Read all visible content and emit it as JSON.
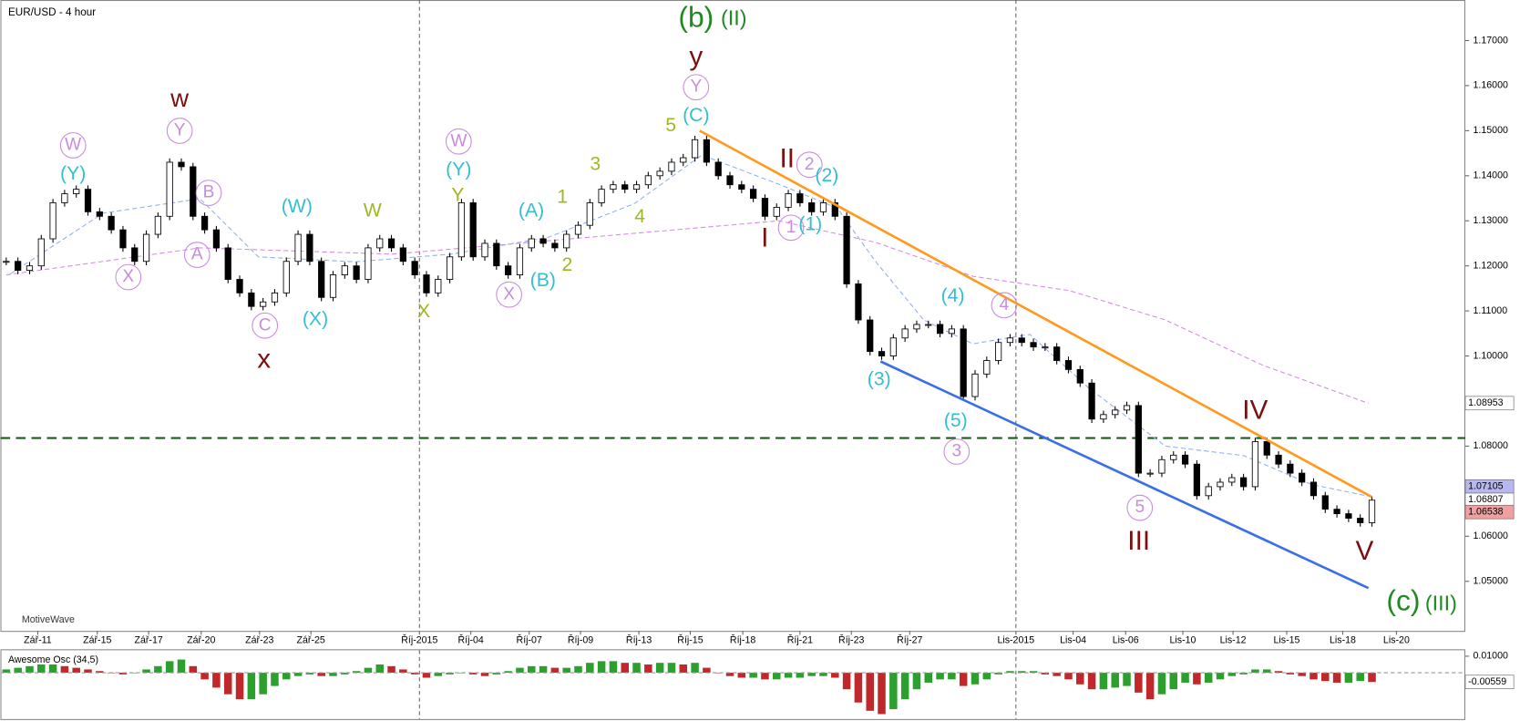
{
  "chart_data": [
    {
      "type": "candlestick",
      "title": "EUR/USD - 4 hour",
      "watermark": "MotiveWave",
      "closes": [
        1.121,
        1.119,
        1.12,
        1.126,
        1.134,
        1.136,
        1.137,
        1.132,
        1.131,
        1.128,
        1.124,
        1.121,
        1.127,
        1.131,
        1.143,
        1.142,
        1.131,
        1.128,
        1.124,
        1.117,
        1.114,
        1.111,
        1.112,
        1.114,
        1.121,
        1.127,
        1.121,
        1.113,
        1.118,
        1.12,
        1.117,
        1.124,
        1.126,
        1.124,
        1.121,
        1.118,
        1.114,
        1.117,
        1.122,
        1.134,
        1.122,
        1.125,
        1.12,
        1.118,
        1.124,
        1.126,
        1.125,
        1.124,
        1.127,
        1.129,
        1.134,
        1.137,
        1.138,
        1.137,
        1.138,
        1.14,
        1.141,
        1.143,
        1.144,
        1.148,
        1.143,
        1.14,
        1.138,
        1.137,
        1.135,
        1.131,
        1.133,
        1.136,
        1.134,
        1.132,
        1.134,
        1.131,
        1.116,
        1.108,
        1.101,
        1.1,
        1.104,
        1.106,
        1.107,
        1.107,
        1.105,
        1.106,
        1.091,
        1.096,
        1.099,
        1.103,
        1.104,
        1.103,
        1.102,
        1.102,
        1.099,
        1.097,
        1.094,
        1.086,
        1.087,
        1.088,
        1.089,
        1.074,
        1.074,
        1.077,
        1.078,
        1.076,
        1.069,
        1.071,
        1.072,
        1.073,
        1.071,
        1.081,
        1.078,
        1.076,
        1.074,
        1.072,
        1.069,
        1.066,
        1.065,
        1.064,
        1.063,
        1.068
      ],
      "up_color": "#ffffff",
      "down_color": "#000000",
      "xlim": [
        0,
        125
      ],
      "xticks": [
        {
          "value": 2.7,
          "label": "Zář-11"
        },
        {
          "value": 7.8,
          "label": "Zář-15"
        },
        {
          "value": 12.2,
          "label": "Zář-17"
        },
        {
          "value": 16.7,
          "label": "Zář-20"
        },
        {
          "value": 21.7,
          "label": "Zář-23"
        },
        {
          "value": 26.1,
          "label": "Zář-25"
        },
        {
          "value": 35.4,
          "label": "Říj-2015"
        },
        {
          "value": 39.8,
          "label": "Říj-04"
        },
        {
          "value": 44.8,
          "label": "Říj-07"
        },
        {
          "value": 49.2,
          "label": "Říj-09"
        },
        {
          "value": 54.2,
          "label": "Říj-13"
        },
        {
          "value": 58.6,
          "label": "Říj-15"
        },
        {
          "value": 63.1,
          "label": "Říj-18"
        },
        {
          "value": 68,
          "label": "Říj-21"
        },
        {
          "value": 72.4,
          "label": "Říj-23"
        },
        {
          "value": 77.4,
          "label": "Říj-27"
        },
        {
          "value": 86.5,
          "label": "Lis-2015"
        },
        {
          "value": 91.4,
          "label": "Lis-04"
        },
        {
          "value": 95.9,
          "label": "Lis-06"
        },
        {
          "value": 100.8,
          "label": "Lis-10"
        },
        {
          "value": 105.1,
          "label": "Lis-12"
        },
        {
          "value": 109.7,
          "label": "Lis-15"
        },
        {
          "value": 114.5,
          "label": "Lis-18"
        },
        {
          "value": 119.1,
          "label": "Lis-20"
        }
      ],
      "ylim": [
        1.039,
        1.179
      ],
      "yticks": [
        {
          "value": 1.05,
          "label": "1.05000"
        },
        {
          "value": 1.06,
          "label": "1.06000"
        },
        {
          "value": 1.07,
          "label": "1.07000"
        },
        {
          "value": 1.08,
          "label": "1.08000"
        },
        {
          "value": 1.09,
          "label": "1.09000"
        },
        {
          "value": 1.1,
          "label": "1.10000"
        },
        {
          "value": 1.11,
          "label": "1.11000"
        },
        {
          "value": 1.12,
          "label": "1.12000"
        },
        {
          "value": 1.13,
          "label": "1.13000"
        },
        {
          "value": 1.14,
          "label": "1.14000"
        },
        {
          "value": 1.15,
          "label": "1.15000"
        },
        {
          "value": 1.16,
          "label": "1.16000"
        },
        {
          "value": 1.17,
          "label": "1.17000"
        }
      ],
      "price_markers": [
        {
          "value": 1.08953,
          "label": "1.08953",
          "color": "#ffffff"
        },
        {
          "value": 1.07105,
          "label": "1.07105",
          "color": "#b8b8f0"
        },
        {
          "value": 1.06807,
          "label": "1.06807",
          "color": "#ffffff"
        },
        {
          "value": 1.06538,
          "label": "1.06538",
          "color": "#f0a0a0"
        }
      ],
      "moving_averages": [
        {
          "color": "#d58be0",
          "x": [
            0,
            16.6,
            33.1,
            49.7,
            66.2,
            74.5,
            82.8,
            91.1,
            99.3,
            107.6,
            116.7
          ],
          "values": [
            1.118,
            1.124,
            1.1226,
            1.1263,
            1.13,
            1.1252,
            1.1177,
            1.1145,
            1.108,
            1.098,
            1.0895
          ]
        },
        {
          "color": "#8fb0ee",
          "x": [
            0.4,
            8.3,
            16.6,
            21.6,
            29.9,
            38.1,
            46.4,
            53.8,
            59.6,
            66.2,
            71.2,
            74.5,
            78.6,
            82.8,
            87.7,
            92.7,
            99.3,
            106,
            111.8,
            116.7
          ],
          "values": [
            1.1183,
            1.1317,
            1.1349,
            1.122,
            1.1209,
            1.1226,
            1.1263,
            1.1338,
            1.1446,
            1.1381,
            1.1328,
            1.1209,
            1.108,
            1.1027,
            1.1048,
            1.093,
            1.08,
            1.0779,
            1.0715,
            1.0689
          ]
        }
      ],
      "trend_lines": [
        {
          "color": "#ff9a1e",
          "x": [
            59.4,
            117
          ],
          "values": [
            1.15,
            1.0687
          ]
        },
        {
          "color": "#3a6fe8",
          "x": [
            74.9,
            116.7
          ],
          "values": [
            1.0988,
            1.0485
          ]
        }
      ],
      "levels": [
        {
          "value": 1.0818,
          "color": "#1c5a1c"
        }
      ],
      "annotations": [
        {
          "text": "(b)",
          "color": "#1f8a1f"
        },
        {
          "text": "(II)",
          "color": "#1f8a1f"
        },
        {
          "text": "y",
          "color": "#7a1010"
        },
        {
          "text": "Y",
          "color": "#c88be0",
          "circled": true
        },
        {
          "text": "(C)",
          "color": "#33bfd0"
        },
        {
          "text": "5",
          "color": "#9cba1e"
        },
        {
          "text": "w",
          "color": "#7a1010"
        },
        {
          "text": "Y",
          "color": "#c88be0",
          "circled": true
        },
        {
          "text": "W",
          "color": "#c88be0",
          "circled": true
        },
        {
          "text": "(Y)",
          "color": "#33bfd0"
        },
        {
          "text": "B",
          "color": "#c88be0",
          "circled": true
        },
        {
          "text": "A",
          "color": "#c88be0",
          "circled": true
        },
        {
          "text": "X",
          "color": "#c88be0",
          "circled": true
        },
        {
          "text": "C",
          "color": "#c88be0",
          "circled": true
        },
        {
          "text": "x",
          "color": "#7a1010"
        },
        {
          "text": "(W)",
          "color": "#33bfd0"
        },
        {
          "text": "(X)",
          "color": "#33bfd0"
        },
        {
          "text": "W",
          "color": "#9cba1e"
        },
        {
          "text": "W",
          "color": "#c88be0",
          "circled": true
        },
        {
          "text": "(Y)",
          "color": "#33bfd0"
        },
        {
          "text": "Y",
          "color": "#9cba1e"
        },
        {
          "text": "X",
          "color": "#9cba1e"
        },
        {
          "text": "X",
          "color": "#c88be0",
          "circled": true
        },
        {
          "text": "(B)",
          "color": "#33bfd0"
        },
        {
          "text": "(A)",
          "color": "#33bfd0"
        },
        {
          "text": "1",
          "color": "#9cba1e"
        },
        {
          "text": "2",
          "color": "#9cba1e"
        },
        {
          "text": "3",
          "color": "#9cba1e"
        },
        {
          "text": "4",
          "color": "#9cba1e"
        },
        {
          "text": "II",
          "color": "#7a1010"
        },
        {
          "text": "2",
          "color": "#c88be0",
          "circled": true
        },
        {
          "text": "(2)",
          "color": "#33bfd0"
        },
        {
          "text": "1",
          "color": "#c88be0",
          "circled": true
        },
        {
          "text": "(1)",
          "color": "#33bfd0"
        },
        {
          "text": "I",
          "color": "#7a1010"
        },
        {
          "text": "(3)",
          "color": "#33bfd0"
        },
        {
          "text": "(4)",
          "color": "#33bfd0"
        },
        {
          "text": "4",
          "color": "#c88be0",
          "circled": true
        },
        {
          "text": "(5)",
          "color": "#33bfd0"
        },
        {
          "text": "3",
          "color": "#c88be0",
          "circled": true
        },
        {
          "text": "5",
          "color": "#c88be0",
          "circled": true
        },
        {
          "text": "III",
          "color": "#7a1010"
        },
        {
          "text": "IV",
          "color": "#7a1010"
        },
        {
          "text": "V",
          "color": "#7a1010"
        },
        {
          "text": "(c)",
          "color": "#1f8a1f"
        },
        {
          "text": "(III)",
          "color": "#1f8a1f"
        }
      ]
    },
    {
      "type": "oscillator",
      "title": "Awesome Osc (34,5)",
      "values": [
        0.002,
        0.003,
        0.004,
        0.005,
        0.005,
        0.004,
        0.003,
        0.002,
        0.001,
        0.0,
        -0.001,
        0.0,
        0.002,
        0.004,
        0.007,
        0.008,
        0.004,
        -0.004,
        -0.009,
        -0.013,
        -0.016,
        -0.016,
        -0.013,
        -0.008,
        -0.004,
        -0.002,
        -0.001,
        -0.002,
        -0.002,
        -0.001,
        0.001,
        0.003,
        0.005,
        0.004,
        0.002,
        -0.001,
        -0.003,
        -0.002,
        -0.001,
        0.0,
        -0.001,
        -0.002,
        -0.001,
        0.001,
        0.003,
        0.004,
        0.004,
        0.003,
        0.003,
        0.004,
        0.006,
        0.007,
        0.007,
        0.006,
        0.006,
        0.005,
        0.006,
        0.006,
        0.005,
        0.006,
        0.003,
        0.0,
        -0.002,
        -0.003,
        -0.003,
        -0.004,
        -0.004,
        -0.003,
        -0.003,
        -0.002,
        -0.002,
        -0.003,
        -0.01,
        -0.018,
        -0.023,
        -0.025,
        -0.022,
        -0.016,
        -0.01,
        -0.006,
        -0.004,
        -0.004,
        -0.008,
        -0.007,
        -0.004,
        -0.001,
        0.001,
        0.001,
        0.001,
        -0.001,
        -0.002,
        -0.004,
        -0.007,
        -0.01,
        -0.01,
        -0.009,
        -0.008,
        -0.012,
        -0.016,
        -0.013,
        -0.01,
        -0.006,
        -0.007,
        -0.006,
        -0.004,
        -0.002,
        -0.001,
        0.002,
        0.002,
        0.001,
        -0.001,
        -0.002,
        -0.004,
        -0.005,
        -0.006,
        -0.006,
        -0.005,
        -0.0056
      ],
      "up_color": "#2ca02c",
      "down_color": "#c0282b",
      "ylim": [
        -0.028,
        0.0136
      ],
      "yticks": [
        {
          "value": 0.01,
          "label": "0.01000"
        }
      ],
      "price_markers": [
        {
          "value": -0.00559,
          "label": "-0.00559",
          "color": "#ffffff"
        }
      ]
    }
  ]
}
